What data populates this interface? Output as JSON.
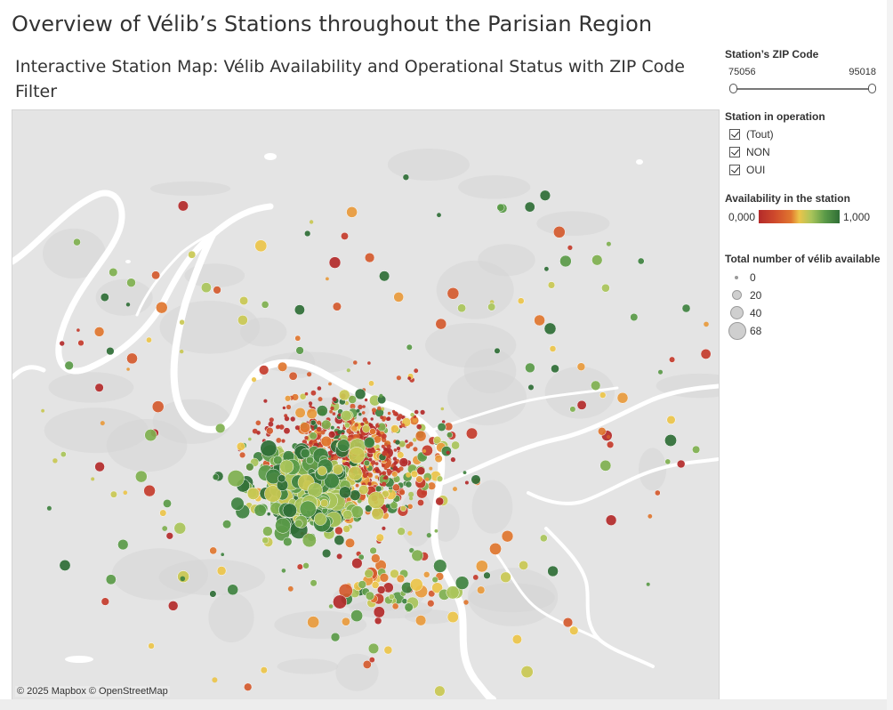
{
  "page": {
    "title": "Overview of Vélib’s Stations throughout the Parisian Region",
    "subtitle": "Interactive Station Map: Vélib Availability and Operational Status with ZIP Code Filter"
  },
  "map": {
    "attribution": "© 2025 Mapbox  © OpenStreetMap",
    "colors": {
      "low": "#b32a2a",
      "mid_low": "#e0762f",
      "mid": "#ecc44a",
      "mid_high": "#a9c45a",
      "high": "#2f6e36",
      "river": "#ffffff",
      "land": "#e4e4e4",
      "park": "#d5d5d5"
    }
  },
  "filters": {
    "zip": {
      "heading": "Station’s ZIP Code",
      "min": "75056",
      "max": "95018",
      "selected_min": 75056,
      "selected_max": 95018
    },
    "operation": {
      "heading": "Station in operation",
      "options": [
        {
          "label": "(Tout)",
          "checked": true
        },
        {
          "label": "NON",
          "checked": true
        },
        {
          "label": "OUI",
          "checked": true
        }
      ]
    }
  },
  "legend": {
    "availability": {
      "heading": "Availability in the station",
      "min_label": "0,000",
      "max_label": "1,000"
    },
    "size": {
      "heading": "Total number of vélib available",
      "entries": [
        {
          "label": "0",
          "value": 0
        },
        {
          "label": "20",
          "value": 20
        },
        {
          "label": "40",
          "value": 40
        },
        {
          "label": "68",
          "value": 68
        }
      ]
    }
  }
}
